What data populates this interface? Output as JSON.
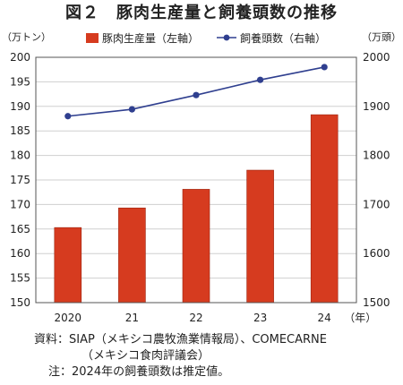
{
  "figure": {
    "title": "図２　豚肉生産量と飼養頭数の推移"
  },
  "chart_data": {
    "type": "bar",
    "categories": [
      "2020",
      "21",
      "22",
      "23",
      "24"
    ],
    "x_unit": "（年）",
    "series": [
      {
        "name": "豚肉生産量（左軸）",
        "type": "bar",
        "axis": "left",
        "color": "#d63b1f",
        "values": [
          165.3,
          169.3,
          173.1,
          177.0,
          188.3
        ]
      },
      {
        "name": "飼養頭数（右軸）",
        "type": "line",
        "axis": "right",
        "color": "#2f3f8f",
        "values": [
          1880,
          1894,
          1923,
          1954,
          1980
        ]
      }
    ],
    "y_left": {
      "unit_label": "（万トン）",
      "min": 150,
      "max": 200,
      "ticks": [
        "150",
        "155",
        "160",
        "165",
        "170",
        "175",
        "180",
        "185",
        "190",
        "195",
        "200"
      ]
    },
    "y_right": {
      "unit_label": "（万頭）",
      "min": 1500,
      "max": 2000,
      "ticks": [
        "1500",
        "1600",
        "1700",
        "1800",
        "1900",
        "2000"
      ]
    },
    "grid": true,
    "legend_position": "top"
  },
  "notes": {
    "source_line1": "資料：SIAP（メキシコ農牧漁業情報局）、COMECARNE",
    "source_line2": "（メキシコ食肉評議会）",
    "note": "注：2024年の飼養頭数は推定値。"
  }
}
